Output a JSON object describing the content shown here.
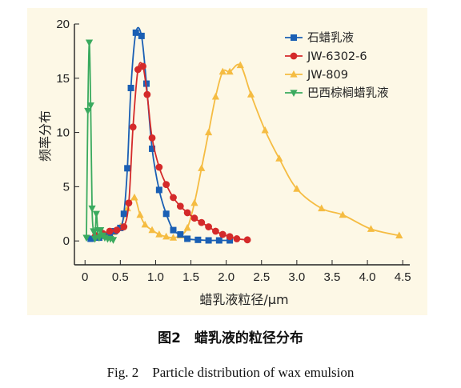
{
  "figure": {
    "caption_cn": "图2　蜡乳液的粒径分布",
    "caption_en": "Fig. 2　Particle distribution of wax emulsion"
  },
  "chart_data": {
    "type": "line",
    "title": "",
    "xlabel": "蜡乳液粒径/μm",
    "ylabel": "频率分布",
    "xlim": [
      -0.15,
      4.6
    ],
    "ylim": [
      -2.2,
      20
    ],
    "xticks": [
      0,
      0.5,
      1.0,
      1.5,
      2.0,
      2.5,
      3.0,
      3.5,
      4.0,
      4.5
    ],
    "xtick_labels": [
      "0",
      "0.5",
      "1.0",
      "1.5",
      "2.0",
      "2.5",
      "3.0",
      "3.5",
      "4.0",
      "4.5"
    ],
    "yticks": [
      0,
      5,
      10,
      15,
      20
    ],
    "ytick_labels": [
      "0",
      "5",
      "10",
      "15",
      "20"
    ],
    "grid": false,
    "legend_position": "top-right",
    "series": [
      {
        "name": "石蜡乳液",
        "color": "#1a5fb4",
        "marker": "square",
        "x": [
          0.08,
          0.2,
          0.28,
          0.35,
          0.42,
          0.5,
          0.55,
          0.6,
          0.65,
          0.72,
          0.8,
          0.87,
          0.95,
          1.05,
          1.15,
          1.25,
          1.35,
          1.45,
          1.6,
          1.75,
          1.9,
          2.05
        ],
        "y": [
          0.2,
          0.3,
          0.5,
          0.7,
          0.9,
          1.2,
          2.5,
          6.7,
          14.1,
          19.2,
          18.9,
          14.5,
          8.5,
          4.7,
          2.5,
          1.0,
          0.6,
          0.2,
          0.1,
          0.05,
          0.05,
          0.05
        ]
      },
      {
        "name": "JW-6302-6",
        "color": "#d42a2a",
        "marker": "circle",
        "x": [
          0.15,
          0.25,
          0.35,
          0.45,
          0.55,
          0.62,
          0.68,
          0.75,
          0.82,
          0.88,
          0.95,
          1.05,
          1.15,
          1.25,
          1.35,
          1.45,
          1.55,
          1.65,
          1.75,
          1.85,
          1.95,
          2.05,
          2.15,
          2.3
        ],
        "y": [
          0.5,
          0.7,
          0.9,
          1.0,
          1.3,
          3.5,
          10.5,
          15.8,
          16.1,
          13.5,
          9.5,
          6.8,
          5.2,
          4.0,
          3.2,
          2.6,
          2.1,
          1.7,
          1.3,
          0.9,
          0.6,
          0.4,
          0.2,
          0.1
        ]
      },
      {
        "name": "JW-809",
        "color": "#f5bc42",
        "marker": "triangle-up",
        "x": [
          0.1,
          0.2,
          0.3,
          0.4,
          0.5,
          0.6,
          0.7,
          0.78,
          0.85,
          0.95,
          1.05,
          1.15,
          1.25,
          1.35,
          1.45,
          1.55,
          1.65,
          1.75,
          1.85,
          1.95,
          2.05,
          2.2,
          2.35,
          2.55,
          2.75,
          3.0,
          3.35,
          3.65,
          4.05,
          4.45
        ],
        "y": [
          0.2,
          0.3,
          0.5,
          0.8,
          1.3,
          3.0,
          4.0,
          2.4,
          1.5,
          1.0,
          0.6,
          0.4,
          0.3,
          0.5,
          1.2,
          3.5,
          6.7,
          10.0,
          13.3,
          15.6,
          15.6,
          16.2,
          13.5,
          10.2,
          7.6,
          4.8,
          3.0,
          2.4,
          1.1,
          0.5
        ]
      },
      {
        "name": "巴西棕榈蜡乳液",
        "color": "#3aaa5e",
        "marker": "triangle-down",
        "x": [
          0.02,
          0.04,
          0.06,
          0.08,
          0.1,
          0.12,
          0.14,
          0.16,
          0.18,
          0.2,
          0.22,
          0.25,
          0.28,
          0.32,
          0.36,
          0.4
        ],
        "y": [
          0.3,
          12.0,
          18.3,
          12.5,
          3.0,
          0.9,
          0.2,
          2.5,
          1.0,
          0.3,
          1.0,
          0.5,
          0.3,
          0.2,
          0.2,
          0.1
        ]
      }
    ]
  }
}
